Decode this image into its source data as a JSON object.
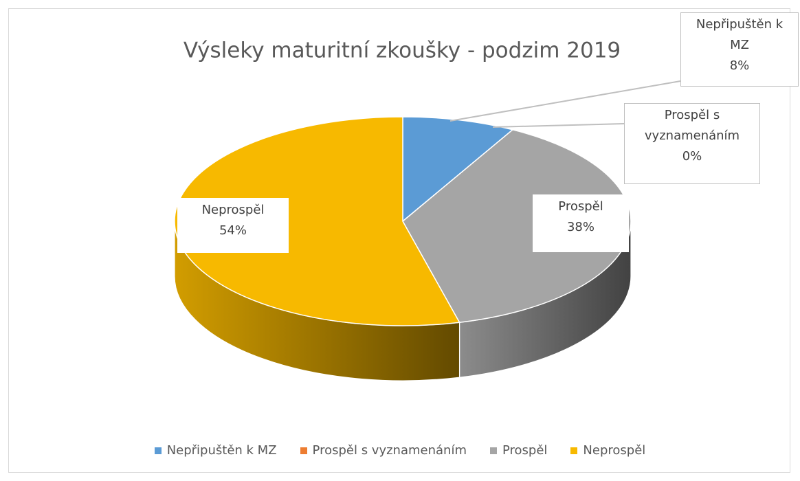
{
  "chart_data": {
    "type": "pie",
    "title": "Výsleky maturitní zkoušky - podzim 2019",
    "categories": [
      "Nepřipuštěn k MZ",
      "Prospěl s vyznamenáním",
      "Prospěl",
      "Neprospěl"
    ],
    "values": [
      8,
      0,
      38,
      54
    ],
    "value_labels": [
      "8%",
      "0%",
      "38%",
      "54%"
    ],
    "colors": [
      "#5b9bd5",
      "#ed7d31",
      "#a5a5a5",
      "#f7b900"
    ],
    "three_d": true,
    "legend": "bottom"
  }
}
